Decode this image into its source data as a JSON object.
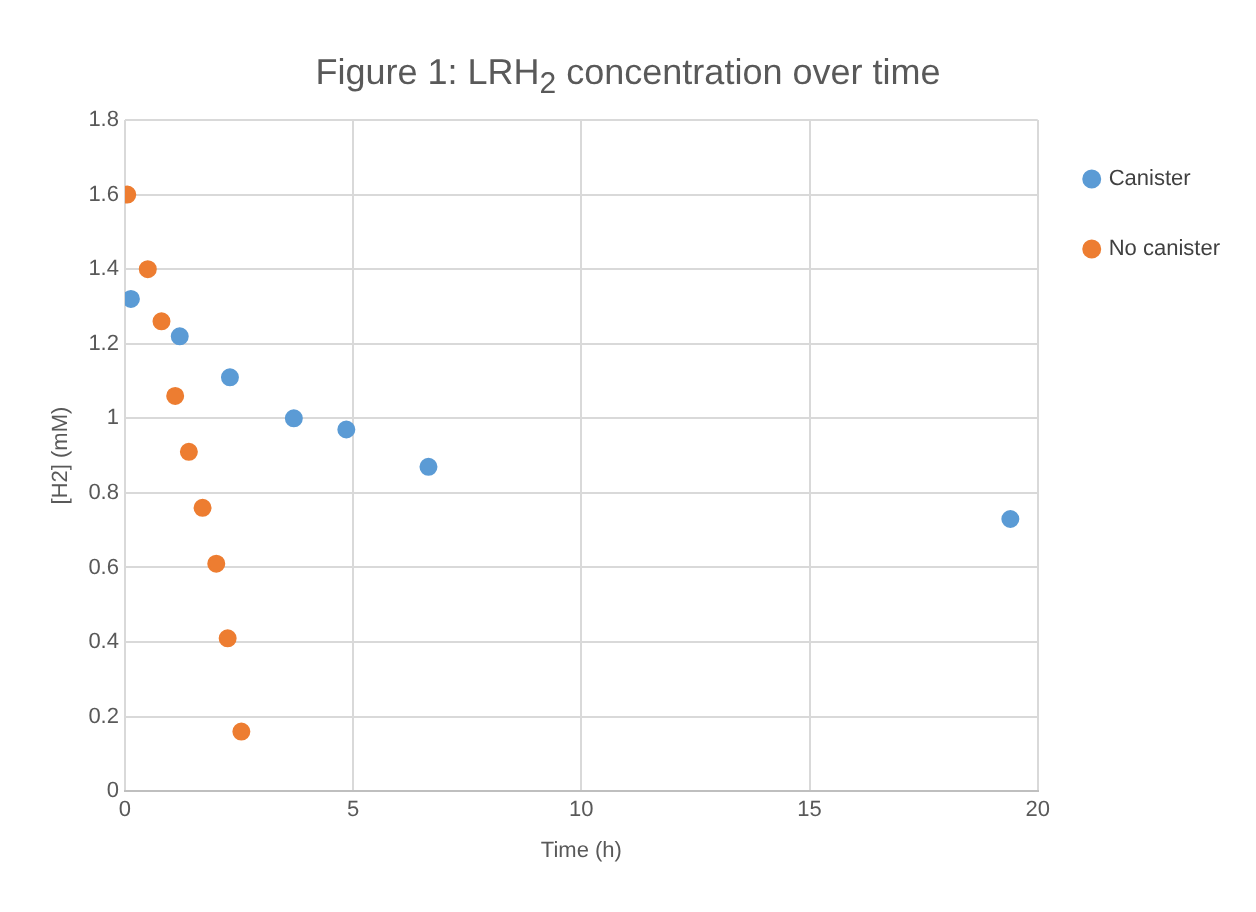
{
  "chart_data": {
    "type": "scatter",
    "title": "Figure 1: LRH$_{2}$ concentration over time",
    "xlabel": "Time (h)",
    "ylabel": "[H2] (mM)",
    "series": [
      {
        "name": "Canister",
        "color": "#5b9bd5",
        "x": [
          0.13,
          1.2,
          2.3,
          3.7,
          4.85,
          6.65,
          19.4
        ],
        "values": [
          1.32,
          1.22,
          1.11,
          1.0,
          0.97,
          0.87,
          0.73
        ]
      },
      {
        "name": "No canister",
        "color": "#ed7d31",
        "x": [
          0.05,
          0.5,
          0.8,
          1.1,
          1.4,
          1.7,
          2.0,
          2.25,
          2.55
        ],
        "values": [
          1.6,
          1.4,
          1.26,
          1.06,
          0.91,
          0.76,
          0.61,
          0.41,
          0.16
        ]
      }
    ],
    "xlim": [
      0,
      20
    ],
    "xticks": [
      0,
      5,
      10,
      15,
      20
    ],
    "ylim": [
      0,
      1.8
    ],
    "yticks": [
      0,
      0.2,
      0.4,
      0.6,
      0.8,
      1,
      1.2,
      1.4,
      1.6,
      1.8
    ],
    "grid": true,
    "legend": "top right",
    "marker": "circle"
  }
}
